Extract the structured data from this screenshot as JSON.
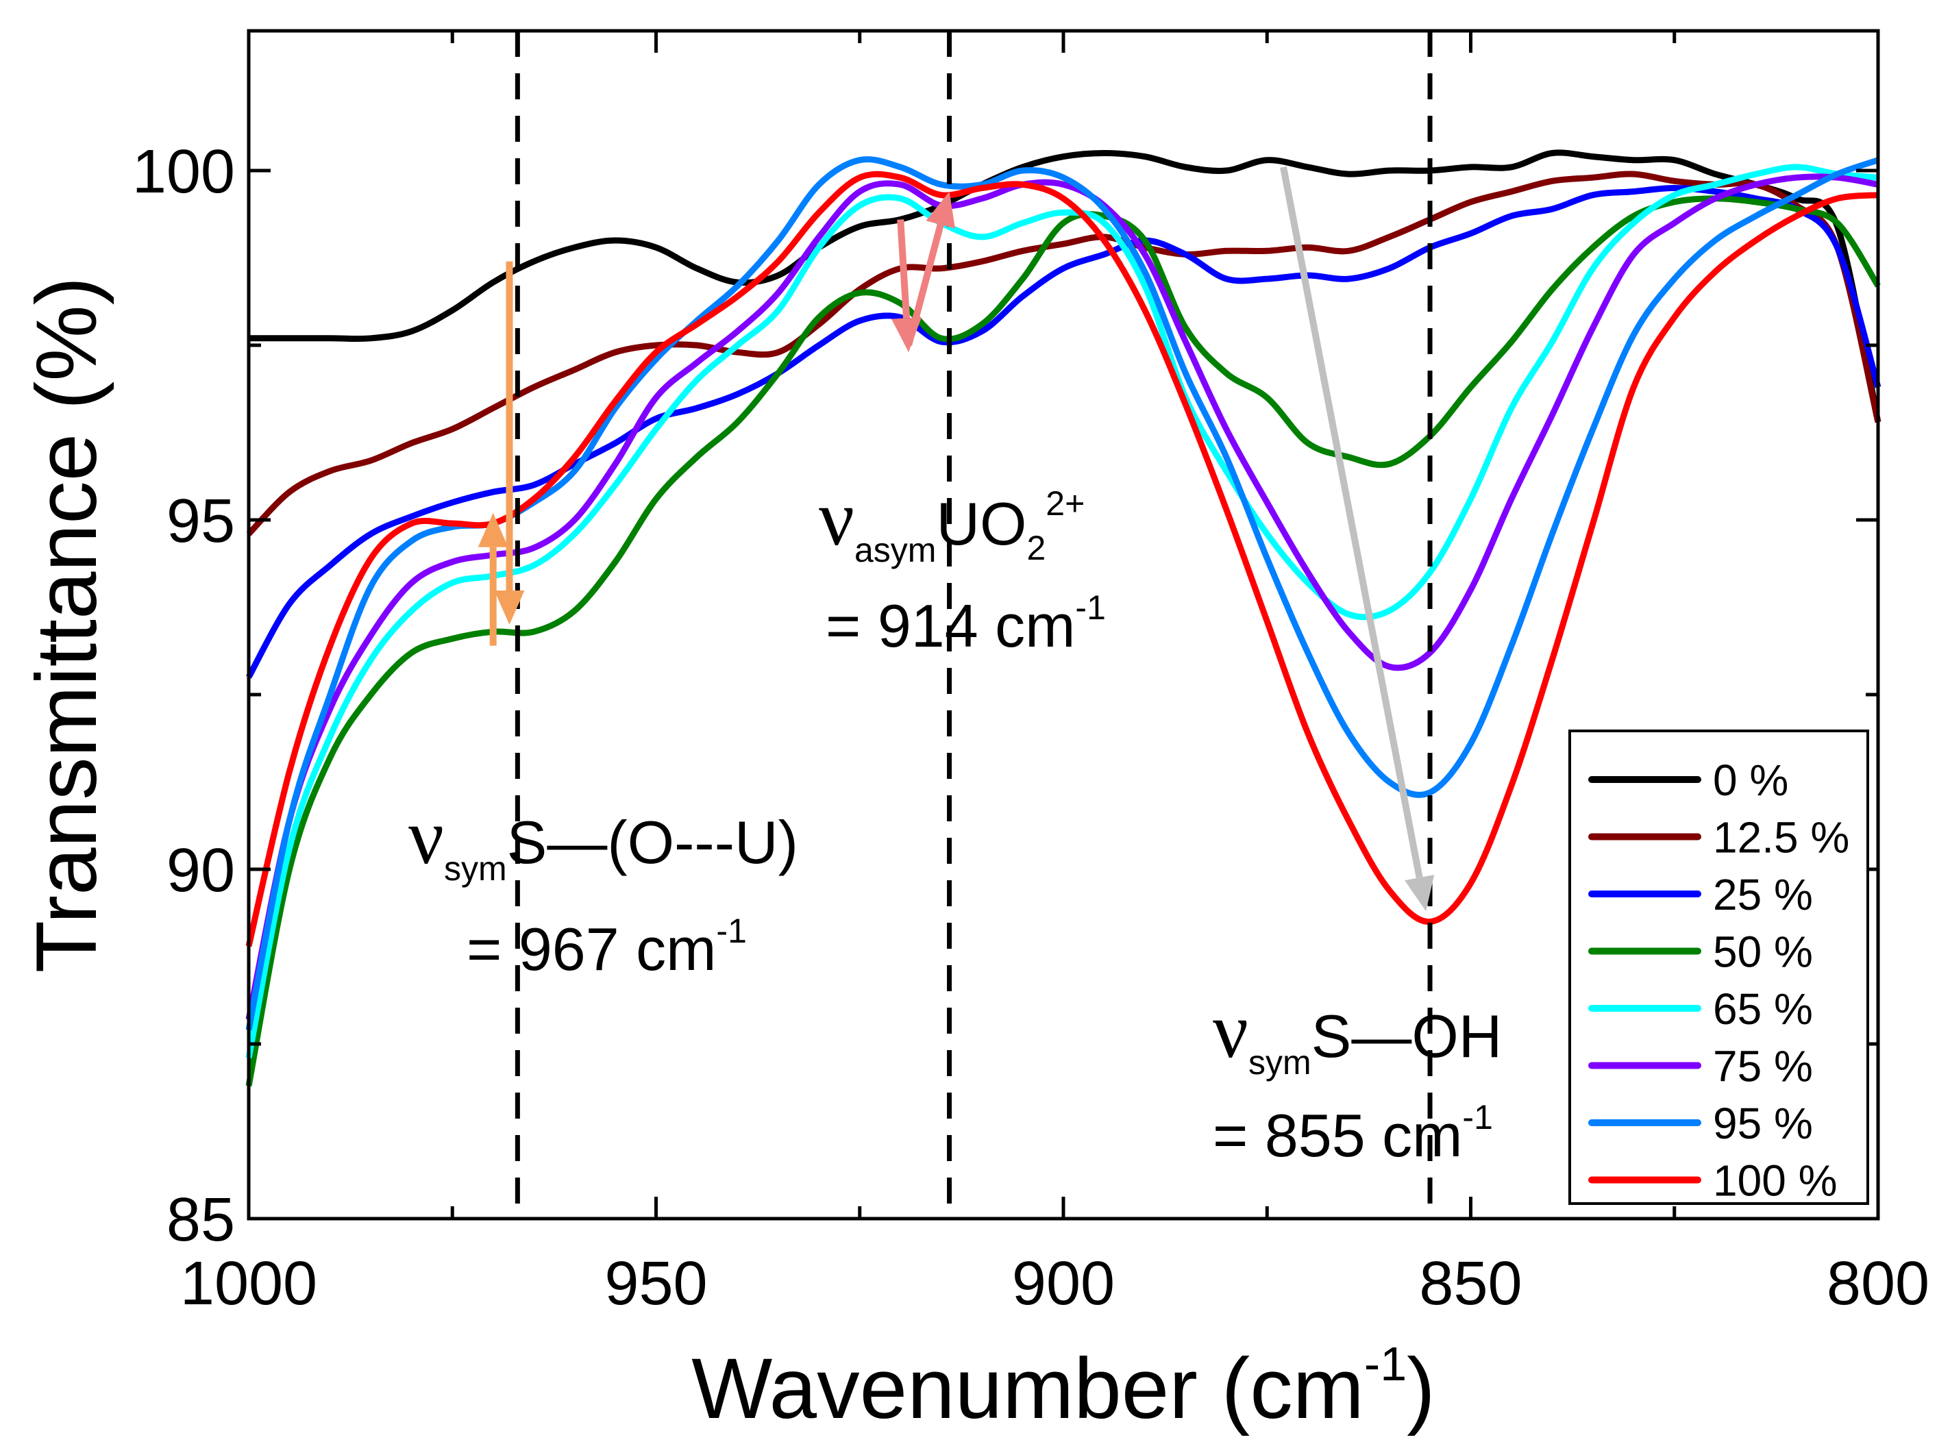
{
  "chart_data": {
    "type": "line",
    "title": "",
    "xlabel": "Wavenumber (cm",
    "xlabel_sup": "-1",
    "xlabel_close": ")",
    "ylabel": "Transmittance (%)",
    "xlim": [
      1000,
      800
    ],
    "ylim": [
      85,
      102
    ],
    "x_ticks": [
      1000,
      950,
      900,
      850,
      800
    ],
    "y_ticks": [
      85,
      90,
      95,
      100
    ],
    "grid": false,
    "legend_placement": "bottom-right",
    "x": [
      1000,
      995,
      990,
      985,
      980,
      975,
      970,
      965,
      960,
      955,
      950,
      945,
      940,
      935,
      930,
      925,
      920,
      915,
      910,
      905,
      900,
      895,
      890,
      885,
      880,
      875,
      870,
      865,
      860,
      855,
      850,
      845,
      840,
      835,
      830,
      825,
      820,
      815,
      810,
      805,
      800
    ],
    "series": [
      {
        "name": "0 %",
        "color": "#000000",
        "values": [
          97.6,
          97.6,
          97.6,
          97.6,
          97.7,
          98.0,
          98.4,
          98.7,
          98.9,
          99.0,
          98.9,
          98.6,
          98.4,
          98.5,
          98.9,
          99.2,
          99.3,
          99.5,
          99.8,
          100.05,
          100.2,
          100.25,
          100.2,
          100.05,
          100.0,
          100.15,
          100.05,
          99.95,
          100.0,
          100.0,
          100.05,
          100.05,
          100.25,
          100.2,
          100.15,
          100.15,
          99.95,
          99.8,
          99.6,
          99.2,
          96.4
        ]
      },
      {
        "name": "12.5 %",
        "color": "#800000",
        "values": [
          94.8,
          95.4,
          95.7,
          95.85,
          96.1,
          96.3,
          96.6,
          96.9,
          97.15,
          97.4,
          97.5,
          97.5,
          97.4,
          97.4,
          97.8,
          98.3,
          98.6,
          98.6,
          98.7,
          98.85,
          98.95,
          99.05,
          98.9,
          98.8,
          98.85,
          98.85,
          98.9,
          98.85,
          99.05,
          99.3,
          99.55,
          99.7,
          99.85,
          99.9,
          99.95,
          99.85,
          99.8,
          99.8,
          99.5,
          98.9,
          96.4
        ]
      },
      {
        "name": "25 %",
        "color": "#0000ff",
        "values": [
          92.75,
          93.8,
          94.35,
          94.8,
          95.05,
          95.25,
          95.4,
          95.5,
          95.8,
          96.1,
          96.45,
          96.6,
          96.8,
          97.1,
          97.5,
          97.85,
          97.9,
          97.55,
          97.7,
          98.2,
          98.6,
          98.8,
          99.0,
          98.8,
          98.45,
          98.45,
          98.5,
          98.45,
          98.6,
          98.9,
          99.1,
          99.35,
          99.45,
          99.65,
          99.7,
          99.75,
          99.7,
          99.6,
          99.45,
          98.9,
          96.9
        ]
      },
      {
        "name": "50 %",
        "color": "#008000",
        "values": [
          86.9,
          90.0,
          91.6,
          92.5,
          93.1,
          93.3,
          93.4,
          93.4,
          93.7,
          94.4,
          95.3,
          95.9,
          96.4,
          97.1,
          97.9,
          98.25,
          98.1,
          97.6,
          97.8,
          98.45,
          99.25,
          99.35,
          99.0,
          97.75,
          97.1,
          96.75,
          96.1,
          95.9,
          95.8,
          96.2,
          96.9,
          97.55,
          98.3,
          98.9,
          99.35,
          99.55,
          99.6,
          99.55,
          99.45,
          99.25,
          98.35
        ]
      },
      {
        "name": "65 %",
        "color": "#00ffff",
        "values": [
          87.3,
          90.3,
          91.9,
          93.0,
          93.7,
          94.1,
          94.2,
          94.35,
          94.8,
          95.5,
          96.3,
          97.0,
          97.5,
          98.0,
          98.9,
          99.5,
          99.6,
          99.25,
          99.05,
          99.25,
          99.4,
          99.25,
          98.35,
          96.75,
          95.7,
          94.8,
          94.1,
          93.65,
          93.7,
          94.25,
          95.3,
          96.6,
          97.55,
          98.6,
          99.25,
          99.65,
          99.8,
          99.95,
          100.05,
          99.95,
          99.9
        ]
      },
      {
        "name": "75 %",
        "color": "#8000ff",
        "values": [
          87.85,
          90.7,
          92.3,
          93.35,
          94.1,
          94.4,
          94.5,
          94.6,
          95.0,
          95.8,
          96.75,
          97.25,
          97.7,
          98.25,
          99.05,
          99.7,
          99.8,
          99.5,
          99.6,
          99.8,
          99.8,
          99.5,
          98.8,
          97.55,
          96.3,
          95.25,
          94.25,
          93.4,
          92.9,
          93.1,
          94.0,
          95.3,
          96.5,
          97.75,
          98.8,
          99.25,
          99.6,
          99.8,
          99.9,
          99.9,
          99.8
        ]
      },
      {
        "name": "95 %",
        "color": "#0080ff",
        "values": [
          87.7,
          90.7,
          92.5,
          94.05,
          94.7,
          94.9,
          94.95,
          95.25,
          95.7,
          96.6,
          97.3,
          97.85,
          98.35,
          99.0,
          99.8,
          100.15,
          100.05,
          99.8,
          99.8,
          100.0,
          99.9,
          99.45,
          98.55,
          97.1,
          95.9,
          94.45,
          93.1,
          91.95,
          91.25,
          91.1,
          91.8,
          93.2,
          94.8,
          96.3,
          97.65,
          98.45,
          99.0,
          99.35,
          99.65,
          99.95,
          100.15
        ]
      },
      {
        "name": "100 %",
        "color": "#ff0000",
        "values": [
          88.9,
          91.4,
          93.2,
          94.45,
          94.95,
          94.95,
          94.95,
          95.3,
          95.9,
          96.7,
          97.4,
          97.8,
          98.2,
          98.7,
          99.4,
          99.9,
          99.9,
          99.65,
          99.75,
          99.8,
          99.6,
          99.0,
          98.0,
          96.65,
          95.15,
          93.55,
          91.95,
          90.7,
          89.7,
          89.25,
          89.8,
          91.2,
          93.0,
          94.95,
          96.9,
          97.9,
          98.55,
          99.0,
          99.35,
          99.6,
          99.65
        ]
      }
    ],
    "reference_lines": [
      967,
      914,
      855
    ],
    "arrows": [
      {
        "color": "#f5a05a",
        "from": [
          968,
          98.7
        ],
        "to": [
          968,
          93.5
        ]
      },
      {
        "color": "#f5a05a",
        "from": [
          970,
          93.2
        ],
        "to": [
          970,
          95.1
        ]
      },
      {
        "color": "#f08080",
        "from": [
          920,
          99.3
        ],
        "to": [
          919,
          97.4
        ]
      },
      {
        "color": "#f08080",
        "from": [
          919,
          97.5
        ],
        "to": [
          914,
          99.7
        ]
      },
      {
        "color": "#c0c0c0",
        "from": [
          873,
          100.05
        ],
        "to": [
          855.5,
          89.4
        ]
      }
    ],
    "annotations": [
      {
        "nu": "ν",
        "sub": "asym",
        "main": "UO",
        "sub2": "2",
        "sup": "2+",
        "eq": "= 914 cm",
        "eq_sup": "-1"
      },
      {
        "nu": "ν",
        "sub": "sym",
        "main": "S—(O---U)",
        "sub2": "",
        "sup": "",
        "eq": "= 967 cm",
        "eq_sup": "-1"
      },
      {
        "nu": "ν",
        "sub": "sym",
        "main": "S—OH",
        "sub2": "",
        "sup": "",
        "eq": "= 855 cm",
        "eq_sup": "-1"
      }
    ]
  }
}
